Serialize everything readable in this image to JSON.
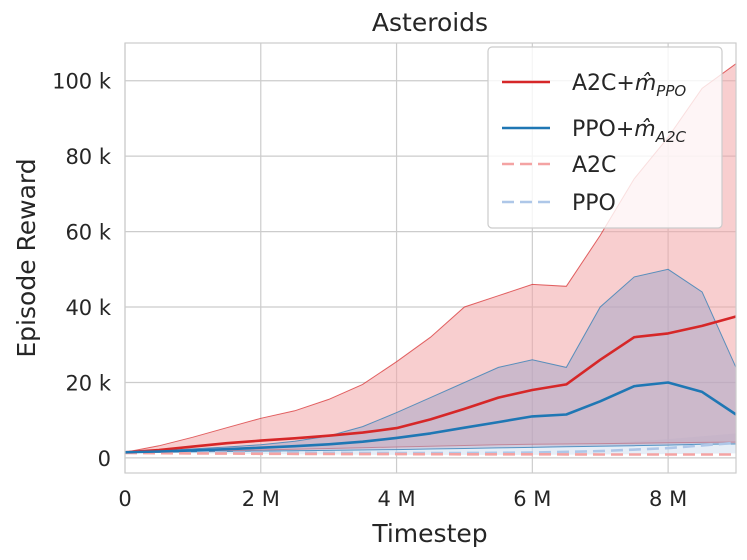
{
  "chart_data": {
    "type": "line",
    "title": "Asteroids",
    "xlabel": "Timestep",
    "ylabel": "Episode Reward",
    "xlim": [
      0,
      9000000
    ],
    "ylim": [
      -4000,
      110000
    ],
    "grid": true,
    "legend_position": "top-right",
    "x_ticks": [
      {
        "value": 0,
        "label": "0"
      },
      {
        "value": 2000000,
        "label": "2 M"
      },
      {
        "value": 4000000,
        "label": "4 M"
      },
      {
        "value": 6000000,
        "label": "6 M"
      },
      {
        "value": 8000000,
        "label": "8 M"
      }
    ],
    "y_ticks": [
      {
        "value": 0,
        "label": "0"
      },
      {
        "value": 20000,
        "label": "20 k"
      },
      {
        "value": 40000,
        "label": "40 k"
      },
      {
        "value": 60000,
        "label": "60 k"
      },
      {
        "value": 80000,
        "label": "80 k"
      },
      {
        "value": 100000,
        "label": "100 k"
      }
    ],
    "series": [
      {
        "name": "A2C+m̂PPO",
        "legend_main": "A2C+",
        "legend_sym": "m̂",
        "legend_sub": "PPO",
        "color": "#d62728",
        "style": "solid",
        "band_color": "#f3a6a7",
        "x": [
          0,
          500000,
          1000000,
          1500000,
          2000000,
          2500000,
          3000000,
          3500000,
          4000000,
          4500000,
          5000000,
          5500000,
          6000000,
          6500000,
          7000000,
          7500000,
          8000000,
          8500000,
          9000000
        ],
        "mean": [
          1500,
          2100,
          3000,
          3900,
          4600,
          5200,
          5900,
          6700,
          7900,
          10200,
          13000,
          16000,
          18000,
          19500,
          26000,
          32000,
          33000,
          35000,
          37500
        ],
        "upper": [
          1500,
          3200,
          5500,
          8000,
          10500,
          12500,
          15500,
          19500,
          25500,
          32000,
          40000,
          43000,
          46000,
          45500,
          59000,
          74000,
          85000,
          98000,
          104500
        ],
        "lower": [
          1500,
          1500,
          1700,
          1900,
          2100,
          2300,
          2500,
          2700,
          2900,
          3100,
          3300,
          3500,
          3600,
          3700,
          3800,
          3900,
          4000,
          4100,
          4200
        ]
      },
      {
        "name": "PPO+m̂A2C",
        "legend_main": "PPO+",
        "legend_sym": "m̂",
        "legend_sub": "A2C",
        "color": "#1f77b4",
        "style": "solid",
        "band_color": "#a7a8c9",
        "x": [
          0,
          500000,
          1000000,
          1500000,
          2000000,
          2500000,
          3000000,
          3500000,
          4000000,
          4500000,
          5000000,
          5500000,
          6000000,
          6500000,
          7000000,
          7500000,
          8000000,
          8500000,
          9000000
        ],
        "mean": [
          1500,
          1700,
          2000,
          2300,
          2700,
          3100,
          3600,
          4300,
          5300,
          6500,
          8000,
          9500,
          11000,
          11500,
          15000,
          19000,
          20000,
          17500,
          11500
        ],
        "upper": [
          1500,
          1900,
          2400,
          2900,
          3500,
          4400,
          5800,
          8300,
          12000,
          16000,
          20000,
          24000,
          26000,
          24000,
          40000,
          48000,
          50000,
          44000,
          24000
        ],
        "lower": [
          1500,
          1500,
          1600,
          1700,
          1800,
          1900,
          2000,
          2100,
          2200,
          2350,
          2500,
          2650,
          2800,
          2950,
          3100,
          3250,
          3400,
          3600,
          3700
        ]
      },
      {
        "name": "A2C",
        "legend_main": "A2C",
        "color": "#f4a3a3",
        "style": "dashed",
        "x": [
          0,
          1000000,
          2000000,
          3000000,
          4000000,
          5000000,
          6000000,
          7000000,
          8000000,
          9000000
        ],
        "mean": [
          1300,
          1200,
          1100,
          1050,
          1000,
          950,
          950,
          900,
          900,
          900
        ]
      },
      {
        "name": "PPO",
        "legend_main": "PPO",
        "color": "#aec7e8",
        "style": "dashed",
        "band_color": "#d6e3f2",
        "x": [
          0,
          1000000,
          2000000,
          3000000,
          4000000,
          5000000,
          6000000,
          7000000,
          8000000,
          9000000
        ],
        "mean": [
          1500,
          1450,
          1400,
          1350,
          1300,
          1300,
          1400,
          1800,
          2600,
          4000
        ],
        "upper": [
          1500,
          1700,
          1900,
          2100,
          2300,
          2600,
          3000,
          3700,
          5000,
          6500
        ],
        "lower": [
          1500,
          1200,
          1000,
          900,
          800,
          800,
          800,
          900,
          1000,
          1200
        ]
      }
    ]
  }
}
